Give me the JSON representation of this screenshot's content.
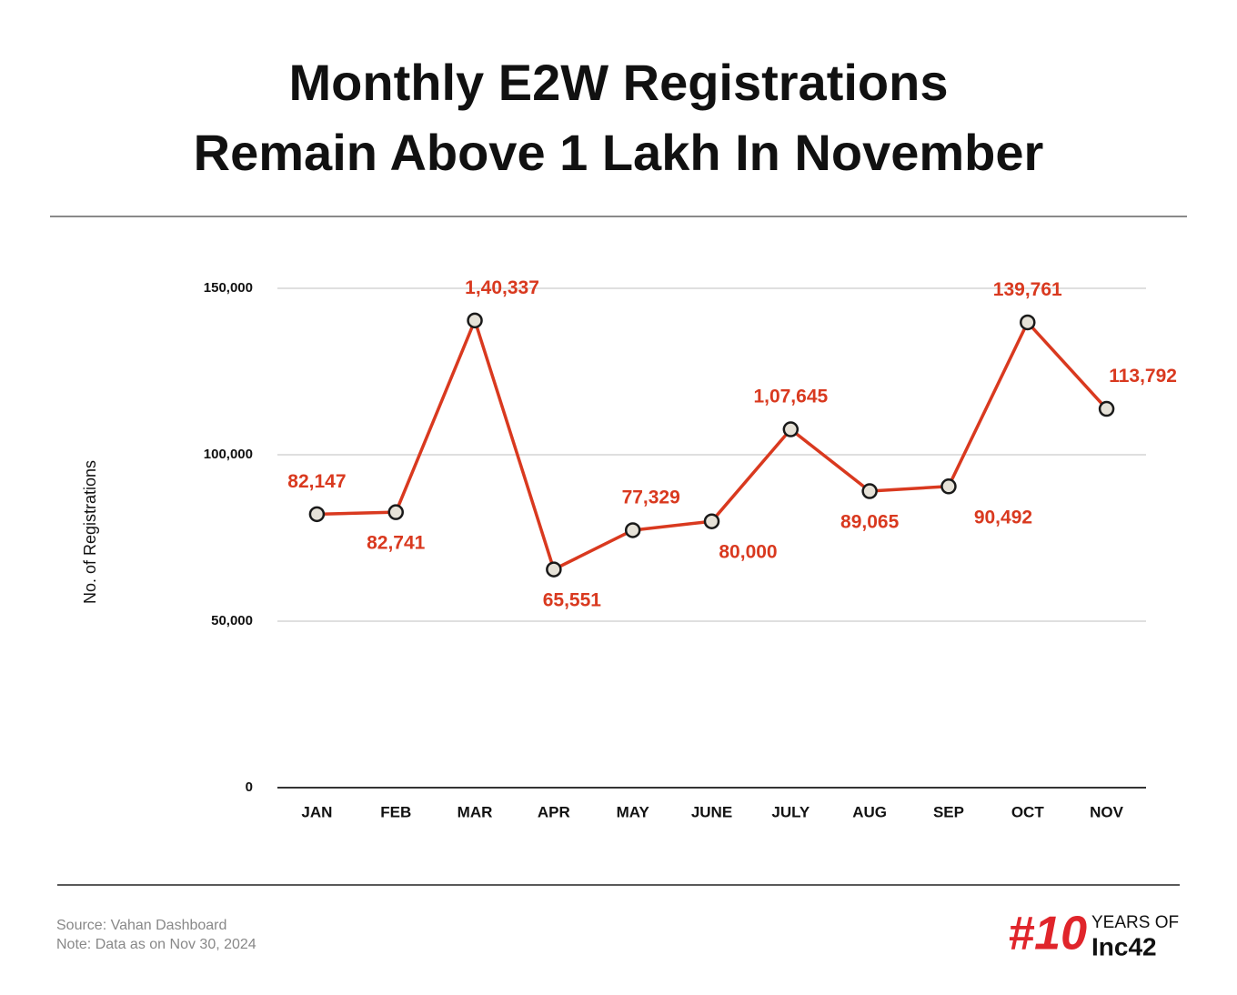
{
  "chart_data": {
    "type": "line",
    "title": [
      "Monthly E2W Registrations",
      "Remain Above 1 Lakh In November"
    ],
    "y_label": "No. of Registrations",
    "categories": [
      "JAN",
      "FEB",
      "MAR",
      "APR",
      "MAY",
      "JUNE",
      "JULY",
      "AUG",
      "SEP",
      "OCT",
      "NOV"
    ],
    "values": [
      82147,
      82741,
      140337,
      65551,
      77329,
      80000,
      107645,
      89065,
      90492,
      139761,
      113792
    ],
    "value_labels": [
      "82,147",
      "82,741",
      "1,40,337",
      "65,551",
      "77,329",
      "80,000",
      "1,07,645",
      "89,065",
      "90,492",
      "139,761",
      "113,792"
    ],
    "color": "#d9391f",
    "ylim": [
      0,
      150000
    ],
    "yticks": [
      0,
      {
        "value": 50000,
        "label": "50,000"
      },
      {
        "value": 100000,
        "label": "100,000"
      },
      {
        "value": 150000,
        "label": "150,000"
      }
    ],
    "grid": true,
    "source": "Source: Vahan Dashboard",
    "note": "Note: Data as on Nov 30, 2024",
    "logo_number": "#10",
    "logo_top": "YEARS OF",
    "logo_bottom": "Inc42"
  }
}
